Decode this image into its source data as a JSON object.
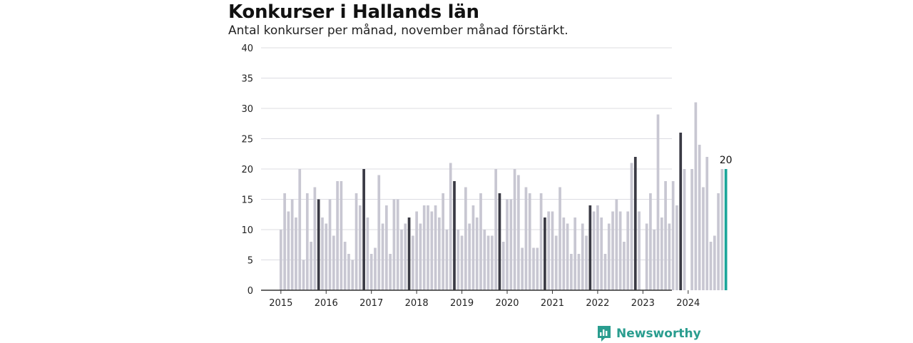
{
  "header": {
    "title": "Konkurser i Hallands län",
    "subtitle": "Antal konkurser per månad, november månad förstärkt."
  },
  "brand": {
    "name": "Newsworthy",
    "icon": "newsworthy-logo-icon",
    "color": "#2a9d8f"
  },
  "colors": {
    "regular": "#c8c7d2",
    "november": "#3a3a44",
    "latest": "#1aa59a",
    "grid": "#dcdce2",
    "axis": "#333333"
  },
  "chart_data": {
    "type": "bar",
    "start": "2015-01",
    "highlight_month": 11,
    "ylim": [
      0,
      40
    ],
    "yticks": [
      0,
      5,
      10,
      15,
      20,
      25,
      30,
      35,
      40
    ],
    "xticks": [
      "2015",
      "2016",
      "2017",
      "2018",
      "2019",
      "2020",
      "2021",
      "2022",
      "2023",
      "2024"
    ],
    "latest_label": "20",
    "values": [
      10,
      16,
      13,
      15,
      12,
      20,
      5,
      16,
      8,
      17,
      15,
      12,
      11,
      15,
      9,
      18,
      18,
      8,
      6,
      5,
      16,
      14,
      20,
      12,
      6,
      7,
      19,
      11,
      14,
      6,
      15,
      15,
      10,
      11,
      12,
      9,
      13,
      11,
      14,
      14,
      13,
      14,
      12,
      16,
      10,
      21,
      18,
      10,
      9,
      17,
      11,
      14,
      12,
      16,
      10,
      9,
      9,
      20,
      16,
      8,
      15,
      15,
      20,
      19,
      7,
      17,
      16,
      7,
      7,
      16,
      12,
      13,
      13,
      9,
      17,
      12,
      11,
      6,
      12,
      6,
      11,
      9,
      14,
      13,
      14,
      12,
      6,
      11,
      13,
      15,
      13,
      8,
      13,
      21,
      22,
      13,
      0,
      11,
      16,
      10,
      29,
      12,
      18,
      11,
      18,
      14,
      26,
      20,
      0,
      20,
      31,
      24,
      17,
      22,
      8,
      9,
      16,
      20,
      20
    ]
  }
}
